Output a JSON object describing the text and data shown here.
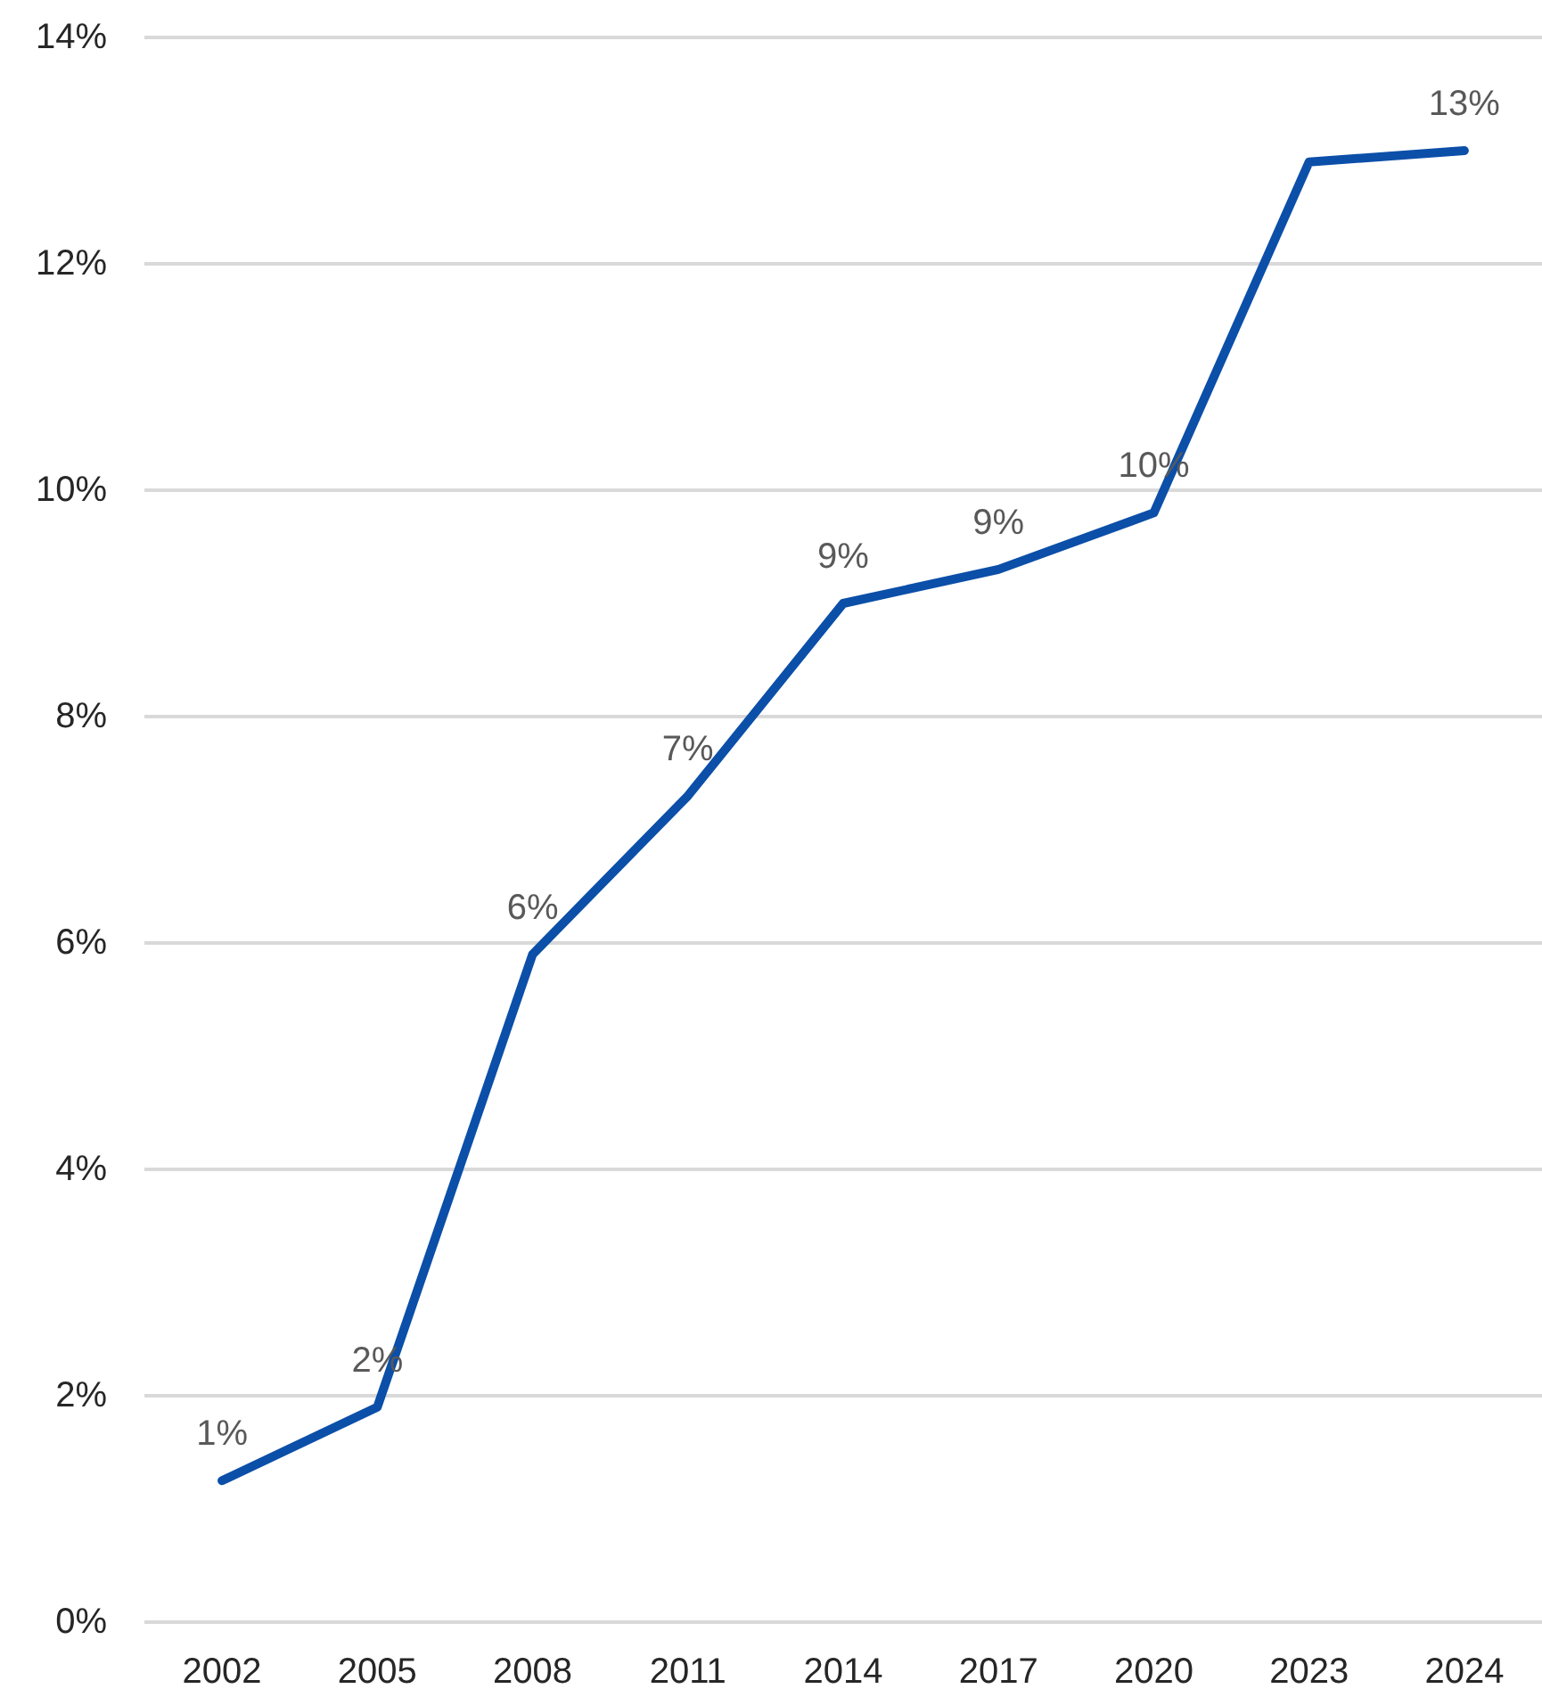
{
  "chart_data": {
    "type": "line",
    "categories": [
      "2002",
      "2005",
      "2008",
      "2011",
      "2014",
      "2017",
      "2020",
      "2023",
      "2024"
    ],
    "series": [
      {
        "color": "#0b4fa8",
        "values": [
          1.25,
          1.9,
          5.9,
          7.3,
          9.0,
          9.3,
          9.8,
          12.9,
          13.0
        ],
        "value_labels": [
          "1%",
          "2%",
          "6%",
          "7%",
          "9%",
          "9%",
          "10%",
          null,
          "13%"
        ]
      }
    ],
    "ylim": [
      0,
      14
    ],
    "yticks": [
      {
        "value": 0,
        "label": "0%"
      },
      {
        "value": 2,
        "label": "2%"
      },
      {
        "value": 4,
        "label": "4%"
      },
      {
        "value": 6,
        "label": "6%"
      },
      {
        "value": 8,
        "label": "8%"
      },
      {
        "value": 10,
        "label": "10%"
      },
      {
        "value": 12,
        "label": "12%"
      },
      {
        "value": 14,
        "label": "14%"
      }
    ],
    "grid": "y",
    "marker": "none",
    "line_style": "solid"
  }
}
